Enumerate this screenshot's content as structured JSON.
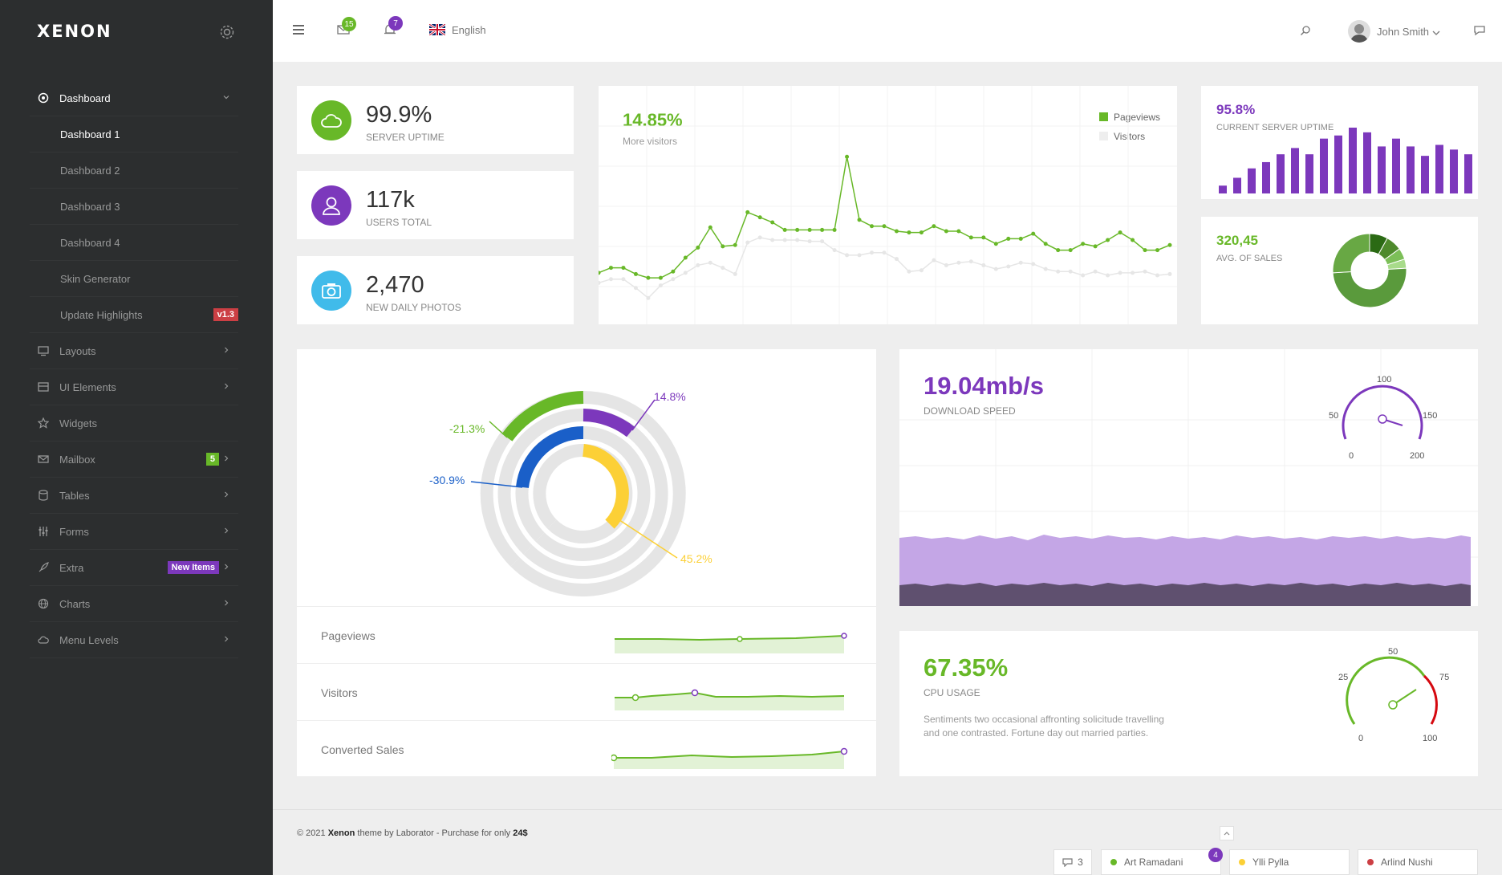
{
  "app": {
    "logo": "XENON"
  },
  "sidebar": {
    "dashboard": "Dashboard",
    "sub_items": [
      "Dashboard 1",
      "Dashboard 2",
      "Dashboard 3",
      "Dashboard 4",
      "Skin Generator",
      "Update Highlights"
    ],
    "update_badge": "v1.3",
    "items": [
      {
        "label": "Layouts",
        "icon": "monitor-icon"
      },
      {
        "label": "UI Elements",
        "icon": "layers-icon"
      },
      {
        "label": "Widgets",
        "icon": "star-icon"
      },
      {
        "label": "Mailbox",
        "icon": "envelope-icon",
        "badge": "5"
      },
      {
        "label": "Tables",
        "icon": "database-icon"
      },
      {
        "label": "Forms",
        "icon": "sliders-icon"
      },
      {
        "label": "Extra",
        "icon": "rocket-icon",
        "badge": "New Items"
      },
      {
        "label": "Charts",
        "icon": "globe-icon"
      },
      {
        "label": "Menu Levels",
        "icon": "cloud-icon"
      }
    ]
  },
  "header": {
    "mail_count": "15",
    "notif_count": "7",
    "language": "English",
    "user": "John Smith"
  },
  "stats": [
    {
      "value": "99.9%",
      "label": "SERVER UPTIME",
      "color": "#68b828",
      "icon": "cloud-icon"
    },
    {
      "value": "117k",
      "label": "USERS TOTAL",
      "color": "#7c38bc",
      "icon": "user-icon"
    },
    {
      "value": "2,470",
      "label": "NEW DAILY PHOTOS",
      "color": "#40bbea",
      "icon": "camera-icon"
    }
  ],
  "visitors_chart": {
    "pct": "14.85%",
    "sub": "More visitors",
    "legend": [
      "Pageviews",
      "Visitors"
    ]
  },
  "uptime_chart": {
    "pct": "95.8%",
    "label": "CURRENT SERVER UPTIME"
  },
  "sales_chart": {
    "value": "320,45",
    "label": "AVG. OF SALES"
  },
  "radial": {
    "labels": [
      "14.8%",
      "-21.3%",
      "-30.9%",
      "45.2%"
    ]
  },
  "sparks": [
    "Pageviews",
    "Visitors",
    "Converted Sales"
  ],
  "download": {
    "value": "19.04mb/s",
    "label": "DOWNLOAD SPEED",
    "gauge_ticks": [
      "0",
      "50",
      "100",
      "150",
      "200"
    ]
  },
  "cpu": {
    "value": "67.35%",
    "label": "CPU USAGE",
    "desc": "Sentiments two occasional affronting solicitude travelling and one contrasted. Fortune day out married parties.",
    "gauge_ticks": [
      "0",
      "25",
      "50",
      "75",
      "100"
    ]
  },
  "footer": {
    "year": "© 2021",
    "brand": "Xenon",
    "mid": "theme by Laborator - Purchase for only",
    "price": "24$"
  },
  "chat": {
    "count": "3",
    "users": [
      "Art Ramadani",
      "Ylli Pylla",
      "Arlind Nushi"
    ],
    "badge": "4"
  },
  "chart_data": [
    {
      "type": "line",
      "title": "14.85%",
      "series": [
        {
          "name": "Pageviews",
          "values": [
            30,
            34,
            34,
            29,
            26,
            26,
            31,
            42,
            50,
            66,
            51,
            52,
            78,
            74,
            70,
            64,
            64,
            64,
            64,
            64,
            122,
            72,
            67,
            67,
            63,
            62,
            62,
            67,
            63,
            63,
            58,
            58,
            53,
            57,
            57,
            61,
            53,
            48,
            48,
            53,
            51,
            56,
            62,
            56,
            48,
            48,
            52
          ]
        },
        {
          "name": "Visitors",
          "values": [
            22,
            25,
            25,
            18,
            10,
            20,
            25,
            30,
            36,
            38,
            34,
            29,
            54,
            58,
            56,
            56,
            56,
            55,
            55,
            48,
            44,
            44,
            46,
            46,
            41,
            31,
            32,
            40,
            36,
            38,
            39,
            36,
            33,
            35,
            38,
            37,
            33,
            31,
            31,
            28,
            31,
            28,
            30,
            30,
            31,
            28,
            29
          ]
        }
      ]
    },
    {
      "type": "bar",
      "title": "95.8%",
      "values": [
        10,
        20,
        32,
        40,
        50,
        58,
        50,
        70,
        74,
        84,
        78,
        60,
        70,
        60,
        48,
        62,
        56,
        50,
        40,
        52,
        36,
        50
      ]
    },
    {
      "type": "pie",
      "title": "320,45",
      "values": [
        8,
        7,
        5,
        4,
        50,
        26
      ]
    }
  ]
}
